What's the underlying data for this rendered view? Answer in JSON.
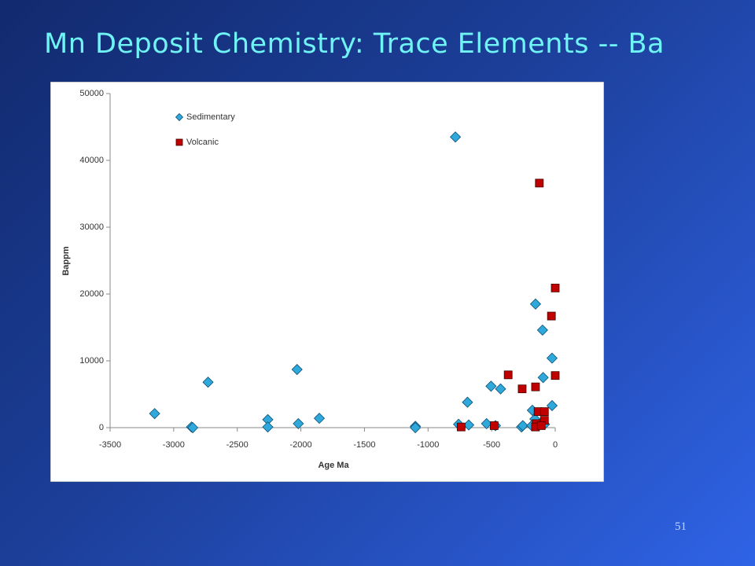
{
  "chart_data": {
    "type": "scatter",
    "title": "Mn Deposit Chemistry: Trace Elements -- Ba",
    "x_label": "Age Ma",
    "y_label": "Bappm",
    "xlim": [
      -3500,
      0
    ],
    "xticks": [
      -3500,
      -3000,
      -2500,
      -2000,
      -1500,
      -1000,
      -500,
      0
    ],
    "ylim": [
      0,
      50000
    ],
    "yticks": [
      0,
      10000,
      20000,
      30000,
      40000,
      50000
    ],
    "grid": false,
    "legend": "top-left",
    "series": [
      {
        "name": "Sedimentary",
        "color": "#2fa8dc",
        "marker": "diamond",
        "x": [
          -3150,
          -2860,
          -2850,
          -2730,
          -2260,
          -2260,
          -2030,
          -2020,
          -1855,
          -1100,
          -1100,
          -785,
          -760,
          -690,
          -680,
          -540,
          -505,
          -470,
          -430,
          -265,
          -255,
          -180,
          -155,
          -185,
          -100,
          -95,
          -25,
          -25,
          -85,
          -160
        ],
        "values": [
          2100,
          100,
          0,
          6800,
          1200,
          100,
          8700,
          600,
          1400,
          200,
          0,
          43500,
          500,
          3800,
          400,
          600,
          6200,
          300,
          5800,
          100,
          300,
          2600,
          18500,
          300,
          14600,
          7500,
          10400,
          3300,
          500,
          1300
        ]
      },
      {
        "name": "Volcanic",
        "color": "#c00000",
        "marker": "square",
        "x": [
          -740,
          -480,
          -370,
          -260,
          -155,
          -125,
          0,
          -30,
          0,
          -135,
          -85,
          -85,
          -150,
          -155,
          -110
        ],
        "values": [
          100,
          300,
          7900,
          5800,
          6100,
          36600,
          20900,
          16700,
          7800,
          2400,
          2400,
          1100,
          600,
          100,
          300
        ]
      }
    ]
  },
  "page_number": "51"
}
